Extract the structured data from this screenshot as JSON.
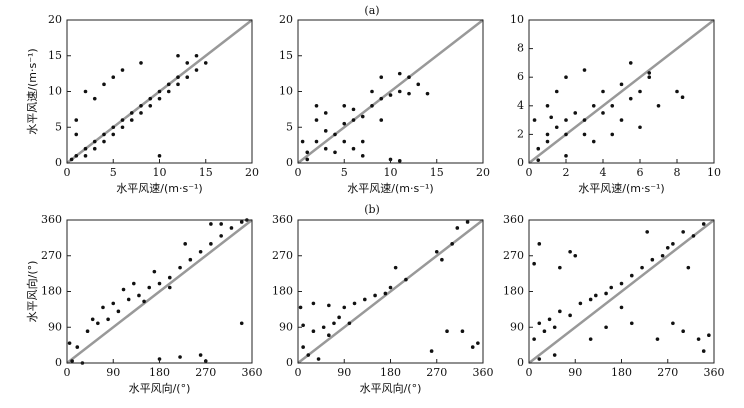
{
  "panel_labels": [
    "(a)",
    "(b)"
  ],
  "chart_data": [
    {
      "type": "scatter",
      "x_label": "水平风速/(m·s⁻¹)",
      "y_label": "水平风速/(m·s⁻¹)",
      "color": "#111",
      "xlim": [
        0,
        20
      ],
      "ylim": [
        0,
        20
      ],
      "xticks": [
        0,
        5,
        10,
        15,
        20
      ],
      "yticks": [
        0,
        5,
        10,
        15,
        20
      ],
      "x": [
        1,
        2,
        3,
        2,
        4,
        3,
        5,
        4,
        6,
        5,
        7,
        6,
        8,
        7,
        9,
        8,
        10,
        9,
        11,
        10,
        12,
        11,
        13,
        12,
        14,
        13,
        14,
        12,
        3,
        2,
        4,
        5,
        1,
        1,
        6,
        8,
        10,
        0.5,
        15
      ],
      "values": [
        1,
        1,
        2,
        2,
        3,
        3,
        4,
        4,
        5,
        5,
        6,
        6,
        7,
        7,
        8,
        8,
        9,
        9,
        10,
        10,
        11,
        11,
        12,
        12,
        13,
        14,
        15,
        15,
        9,
        10,
        11,
        12,
        4,
        6,
        13,
        14,
        1,
        0.5,
        14
      ]
    },
    {
      "type": "scatter",
      "x_label": "水平风速/(m·s⁻¹)",
      "color": "#111",
      "xlim": [
        0,
        20
      ],
      "ylim": [
        0,
        20
      ],
      "xticks": [
        0,
        5,
        10,
        15,
        20
      ],
      "yticks": [
        0,
        5,
        10,
        15,
        20
      ],
      "x": [
        1,
        2,
        3,
        4,
        5,
        6,
        7,
        8,
        9,
        10,
        11,
        12,
        13,
        14,
        11,
        3,
        2,
        5,
        6,
        7,
        9,
        4,
        10,
        11,
        1,
        8,
        12,
        3,
        5,
        6,
        9,
        0.5,
        2,
        7
      ],
      "values": [
        1.5,
        3,
        4.5,
        4,
        5.5,
        6,
        6.5,
        8,
        9,
        9.5,
        10,
        12,
        11,
        9.7,
        12.5,
        7,
        6,
        3,
        2,
        3,
        6,
        1.5,
        0.5,
        0.3,
        0.5,
        10,
        9.7,
        2,
        8,
        7.5,
        12,
        3,
        8,
        1
      ]
    },
    {
      "type": "scatter",
      "x_label": "水平风速/(m·s⁻¹)",
      "color": "#111",
      "xlim": [
        0,
        10
      ],
      "ylim": [
        0,
        10
      ],
      "xticks": [
        0,
        2,
        4,
        6,
        8,
        10
      ],
      "yticks": [
        0,
        2,
        4,
        6,
        8,
        10
      ],
      "x": [
        0.5,
        1,
        1,
        1.5,
        2,
        2,
        2.5,
        3,
        3,
        3.5,
        4,
        4,
        4.5,
        5,
        5,
        5.5,
        6,
        6.5,
        7,
        6,
        8,
        8.3,
        1,
        1.5,
        2,
        3,
        0.3,
        0.5,
        2,
        3.5,
        4.5,
        1.2,
        5.5,
        6.5
      ],
      "values": [
        1,
        2,
        1.5,
        2.5,
        3,
        2,
        3.5,
        3,
        2,
        4,
        3.5,
        5,
        4,
        3,
        5.5,
        4.5,
        5,
        6,
        4,
        2.5,
        5,
        4.6,
        4,
        5,
        6,
        6.5,
        3,
        0.2,
        0.5,
        1.5,
        2,
        3.2,
        7,
        6.3
      ]
    },
    {
      "type": "scatter",
      "x_label": "水平风向/(°)",
      "y_label": "水平风向/(°)",
      "color": "#111",
      "xlim": [
        0,
        360
      ],
      "ylim": [
        0,
        360
      ],
      "xticks": [
        0,
        90,
        180,
        270,
        360
      ],
      "yticks": [
        0,
        90,
        180,
        270,
        360
      ],
      "x": [
        10,
        20,
        5,
        40,
        60,
        80,
        100,
        120,
        140,
        160,
        180,
        200,
        220,
        240,
        260,
        280,
        300,
        320,
        340,
        350,
        70,
        90,
        130,
        170,
        230,
        280,
        300,
        180,
        220,
        260,
        270,
        340,
        30,
        50,
        110,
        150,
        200
      ],
      "values": [
        5,
        40,
        50,
        80,
        100,
        110,
        130,
        160,
        170,
        190,
        200,
        215,
        240,
        260,
        280,
        300,
        320,
        340,
        355,
        360,
        140,
        150,
        200,
        230,
        300,
        350,
        350,
        10,
        15,
        20,
        5,
        100,
        0,
        110,
        185,
        155,
        190
      ]
    },
    {
      "type": "scatter",
      "x_label": "水平风向/(°)",
      "color": "#111",
      "xlim": [
        0,
        360
      ],
      "ylim": [
        0,
        360
      ],
      "xticks": [
        0,
        90,
        180,
        270,
        360
      ],
      "yticks": [
        0,
        90,
        180,
        270,
        360
      ],
      "x": [
        10,
        30,
        50,
        60,
        70,
        80,
        90,
        110,
        130,
        150,
        170,
        180,
        190,
        210,
        20,
        40,
        5,
        30,
        60,
        100,
        270,
        280,
        300,
        310,
        330,
        260,
        290,
        320,
        350,
        340,
        10
      ],
      "values": [
        40,
        80,
        90,
        70,
        100,
        115,
        140,
        150,
        160,
        170,
        175,
        190,
        240,
        210,
        20,
        10,
        140,
        150,
        145,
        100,
        280,
        260,
        300,
        340,
        355,
        30,
        80,
        80,
        50,
        40,
        95
      ]
    },
    {
      "type": "scatter",
      "color": "#111",
      "xlim": [
        0,
        360
      ],
      "ylim": [
        0,
        360
      ],
      "xticks": [
        0,
        90,
        180,
        270,
        360
      ],
      "yticks": [
        0,
        90,
        180,
        270,
        360
      ],
      "x": [
        10,
        20,
        30,
        40,
        50,
        60,
        80,
        100,
        120,
        130,
        150,
        160,
        180,
        200,
        220,
        240,
        260,
        270,
        280,
        300,
        320,
        340,
        10,
        20,
        60,
        90,
        120,
        150,
        200,
        250,
        280,
        300,
        330,
        350,
        340,
        20,
        50,
        80,
        230,
        310,
        180
      ],
      "values": [
        60,
        100,
        80,
        110,
        90,
        130,
        120,
        150,
        160,
        170,
        175,
        190,
        200,
        220,
        240,
        260,
        270,
        290,
        300,
        330,
        320,
        350,
        250,
        300,
        240,
        270,
        60,
        90,
        100,
        60,
        100,
        80,
        60,
        70,
        30,
        10,
        20,
        280,
        330,
        240,
        140
      ]
    }
  ]
}
